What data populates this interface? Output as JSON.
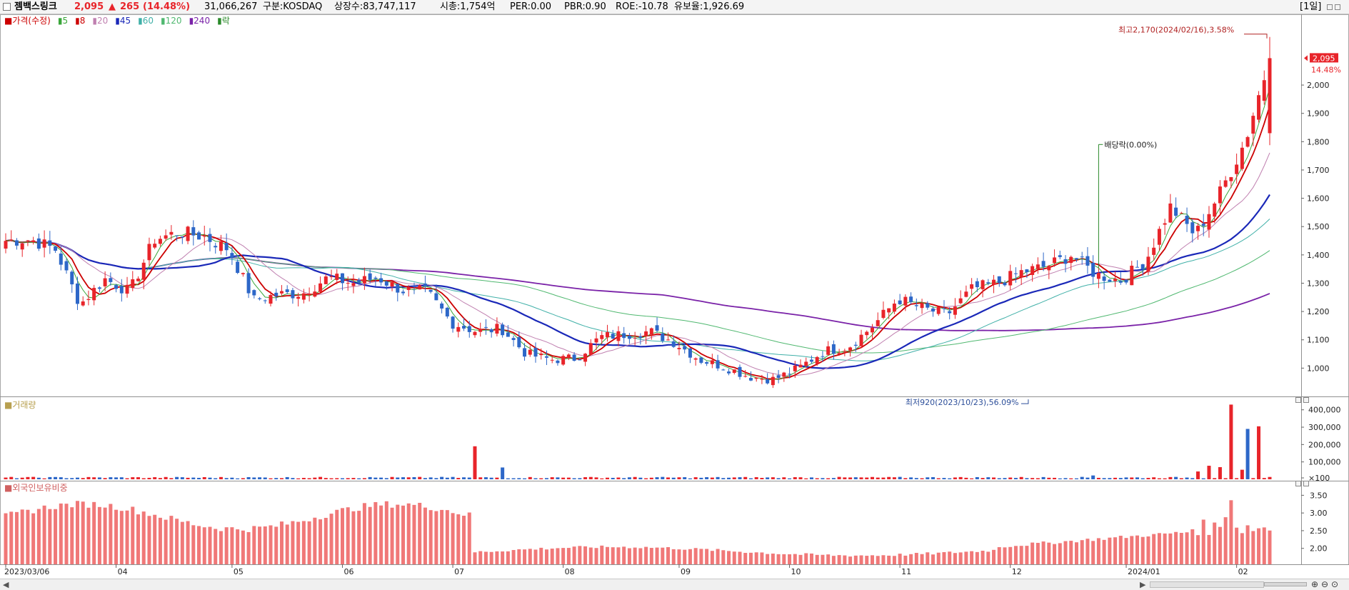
{
  "header": {
    "name": "젬백스링크",
    "price": "2,095",
    "change_arrow": "▲",
    "change": "265",
    "change_pct": "(14.48%)",
    "volume": "31,066,267",
    "market": "구분:KOSDAQ",
    "shares": "상장수:83,747,117",
    "market_cap": "시총:1,754억",
    "per": "PER:0.00",
    "pbr": "PBR:0.90",
    "roe": "ROE:-10.78",
    "float": "유보율:1,926.69",
    "period": "[1일]"
  },
  "legend": {
    "price": "가격(수정)",
    "ma5": "5",
    "ma8": "8",
    "ma20": "20",
    "ma45": "45",
    "ma60": "60",
    "ma120": "120",
    "ma240": "240",
    "ex": "락",
    "volume": "거래량",
    "foreign": "외국인보유비중"
  },
  "colors": {
    "up": "#e8242a",
    "down": "#2d67c8",
    "ma5": "#3aa63a",
    "ma8": "#cc0000",
    "ma20": "#c080b0",
    "ma45": "#1a28b8",
    "ma60": "#40b0a8",
    "ma120": "#50b870",
    "ma240": "#7a22a8",
    "foreign": "#f07878",
    "annotation": "#2a8a2a"
  },
  "chart_data": [
    {
      "type": "candlestick",
      "name": "가격(수정)",
      "yticks": [
        "1,000",
        "1,100",
        "1,200",
        "1,300",
        "1,400",
        "1,500",
        "1,600",
        "1,700",
        "1,800",
        "1,900",
        "2,000"
      ],
      "ylim": [
        900,
        2250
      ],
      "start_date": "2023/03/06",
      "xtick_labels": [
        "2023/03/06",
        "04",
        "05",
        "06",
        "07",
        "08",
        "09",
        "10",
        "11",
        "12",
        "2024/01",
        "02"
      ],
      "current_price_label": "2,095",
      "current_change_label": "14.48%",
      "annotations": {
        "high": "최고2,170(2024/02/16),3.58%",
        "low": "최저920(2023/10/23),56.09%",
        "dividend": "배당락(0.00%)"
      },
      "anchors": [
        [
          1.0,
          1450
        ],
        [
          0.5,
          1455
        ],
        [
          0.15,
          1420
        ],
        [
          0.06,
          1225
        ],
        [
          0.09,
          1315
        ],
        [
          0.13,
          1270
        ],
        [
          0.17,
          1455
        ],
        [
          0.21,
          1480
        ],
        [
          0.25,
          1465
        ],
        [
          0.29,
          1420
        ],
        [
          0.33,
          1240
        ],
        [
          0.37,
          1260
        ],
        [
          0.39,
          1265
        ],
        [
          0.405,
          1320
        ],
        [
          0.44,
          1300
        ],
        [
          0.48,
          1320
        ],
        [
          0.51,
          1275
        ],
        [
          0.53,
          1270
        ],
        [
          0.55,
          1160
        ],
        [
          0.58,
          1130
        ],
        [
          0.63,
          1140
        ],
        [
          0.66,
          1050
        ],
        [
          0.66,
          1030
        ],
        [
          0.69,
          1035
        ],
        [
          0.72,
          1110
        ],
        [
          0.77,
          1120
        ],
        [
          0.815,
          1130
        ],
        [
          0.85,
          1090
        ],
        [
          0.93,
          1030
        ],
        [
          0.965,
          1005
        ],
        [
          0.99,
          970
        ],
        [
          1.02,
          960
        ],
        [
          1.05,
          1000
        ],
        [
          1.08,
          1060
        ],
        [
          1.1,
          1075
        ],
        [
          1.12,
          1150
        ],
        [
          1.14,
          1245
        ],
        [
          1.17,
          1210
        ],
        [
          1.21,
          1190
        ],
        [
          1.245,
          1280
        ],
        [
          1.265,
          1300
        ],
        [
          1.28,
          1340
        ],
        [
          1.31,
          1360
        ],
        [
          1.355,
          1400
        ],
        [
          1.38,
          1330
        ],
        [
          1.405,
          1310
        ],
        [
          1.42,
          1380
        ],
        [
          1.44,
          1570
        ],
        [
          1.46,
          1470
        ],
        [
          1.475,
          1620
        ],
        [
          1.49,
          1800
        ],
        [
          1.5,
          2095
        ]
      ],
      "moving_averages": [
        "5",
        "8",
        "20",
        "45",
        "60",
        "120",
        "240"
      ]
    },
    {
      "type": "bar",
      "name": "거래량",
      "yticks": [
        "400,000",
        "300,000",
        "200,000",
        "100,000",
        "×100"
      ],
      "ylim": [
        0,
        440000
      ]
    },
    {
      "type": "bar",
      "name": "외국인보유비중",
      "yticks": [
        "3.50",
        "3.00",
        "2.50",
        "2.00"
      ],
      "ylim": [
        1.55,
        3.75
      ]
    }
  ]
}
